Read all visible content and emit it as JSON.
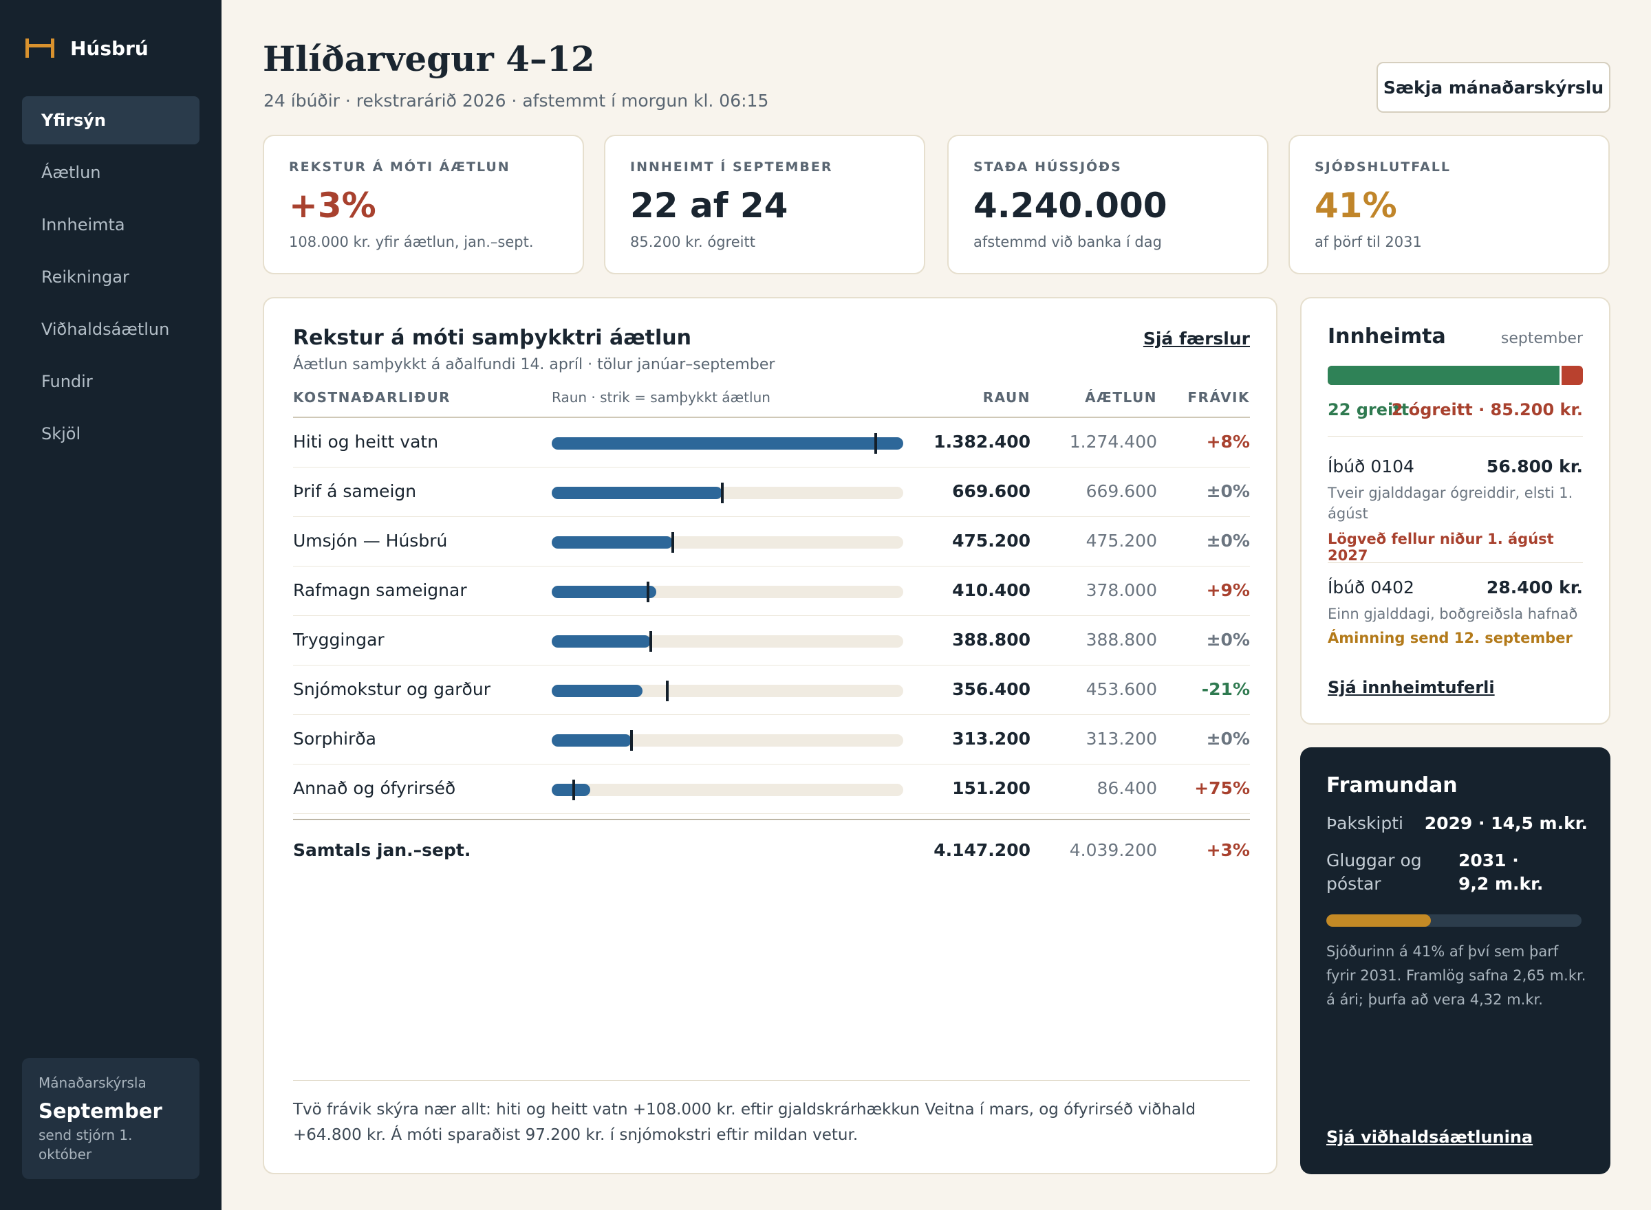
{
  "app": {
    "name": "Húsbrú",
    "logo_icon": "bridge-icon",
    "accent": "#d9922e"
  },
  "sidebar": {
    "items": [
      {
        "label": "Yfirsýn",
        "active": true
      },
      {
        "label": "Áætlun"
      },
      {
        "label": "Innheimta"
      },
      {
        "label": "Reikningar"
      },
      {
        "label": "Viðhaldsáætlun"
      },
      {
        "label": "Fundir"
      },
      {
        "label": "Skjöl"
      }
    ],
    "report": {
      "label": "Mánaðarskýrsla",
      "month": "September",
      "sub": "send stjórn 1. október"
    }
  },
  "header": {
    "title": "Hlíðarvegur 4–12",
    "subtitle": "24 íbúðir · rekstrarárið 2026 · afstemmt í morgun kl. 06:15",
    "button_label": "Sækja mánaðarskýrslu"
  },
  "kpis": [
    {
      "label": "REKSTUR Á MÓTI ÁÆTLUN",
      "value": "+3%",
      "sub": "108.000 kr. yfir áætlun, jan.–sept.",
      "color": "#a8412e"
    },
    {
      "label": "INNHEIMT Í SEPTEMBER",
      "value": "22 af 24",
      "sub": "85.200 kr. ógreitt",
      "color": "#1a2530"
    },
    {
      "label": "STAÐA HÚSSJÓÐS",
      "value": "4.240.000",
      "sub": "afstemmd við banka í dag",
      "color": "#1a2530"
    },
    {
      "label": "SJÓÐSHLUTFALL",
      "value": "41%",
      "sub": "af þörf til 2031",
      "color": "#c0852a"
    }
  ],
  "budget": {
    "title": "Rekstur á móti samþykktri áætlun",
    "subtitle": "Áætlun samþykkt á aðalfundi 14. apríl · tölur janúar–september",
    "link": "Sjá færslur",
    "headers": {
      "item": "KOSTNAÐARLIÐUR",
      "legend": "Raun · strik = samþykkt áætlun",
      "actual": "RAUN",
      "plan": "ÁÆTLUN",
      "dev": "FRÁVIK"
    },
    "rows": [
      {
        "label": "Hiti og heitt vatn",
        "actual": 1382400,
        "plan": 1274400,
        "actual_text": "1.382.400",
        "plan_text": "1.274.400",
        "dev": "+8%",
        "tone": "red"
      },
      {
        "label": "Þrif á sameign",
        "actual": 669600,
        "plan": 669600,
        "actual_text": "669.600",
        "plan_text": "669.600",
        "dev": "±0%",
        "tone": "grey"
      },
      {
        "label": "Umsjón — Húsbrú",
        "actual": 475200,
        "plan": 475200,
        "actual_text": "475.200",
        "plan_text": "475.200",
        "dev": "±0%",
        "tone": "grey"
      },
      {
        "label": "Rafmagn sameignar",
        "actual": 410400,
        "plan": 378000,
        "actual_text": "410.400",
        "plan_text": "378.000",
        "dev": "+9%",
        "tone": "red"
      },
      {
        "label": "Tryggingar",
        "actual": 388800,
        "plan": 388800,
        "actual_text": "388.800",
        "plan_text": "388.800",
        "dev": "±0%",
        "tone": "grey"
      },
      {
        "label": "Snjómokstur og garður",
        "actual": 356400,
        "plan": 453600,
        "actual_text": "356.400",
        "plan_text": "453.600",
        "dev": "-21%",
        "tone": "green"
      },
      {
        "label": "Sorphirða",
        "actual": 313200,
        "plan": 313200,
        "actual_text": "313.200",
        "plan_text": "313.200",
        "dev": "±0%",
        "tone": "grey"
      },
      {
        "label": "Annað og ófyrirséð",
        "actual": 151200,
        "plan": 86400,
        "actual_text": "151.200",
        "plan_text": "86.400",
        "dev": "+75%",
        "tone": "red"
      }
    ],
    "scale_max": 1382400,
    "total": {
      "label": "Samtals jan.–sept.",
      "actual": "4.147.200",
      "plan": "4.039.200",
      "dev": "+3%"
    },
    "note": "Tvö frávik skýra nær allt: hiti og heitt vatn +108.000 kr. eftir gjaldskrárhækkun Veitna í mars, og ófyrirséð viðhald +64.800 kr. Á móti sparaðist 97.200 kr. í snjómokstri eftir mildan vetur."
  },
  "collection": {
    "title": "Innheimta",
    "month": "september",
    "paid_count": 22,
    "total_count": 24,
    "paid_label": "22 greitt",
    "unpaid_label": "2 ógreitt · 85.200 kr.",
    "units": [
      {
        "name": "Íbúð 0104",
        "amount": "56.800 kr.",
        "desc": "Tveir gjalddagar ógreiddir, elsti 1. ágúst",
        "warn": "Lögveð fellur niður 1. ágúst 2027",
        "tone": "red"
      },
      {
        "name": "Íbúð 0402",
        "amount": "28.400 kr.",
        "desc": "Einn gjalddagi, boðgreiðsla hafnað",
        "warn": "Áminning send 12. september",
        "tone": "amber"
      }
    ],
    "link": "Sjá innheimtuferli"
  },
  "upcoming": {
    "title": "Framundan",
    "items": [
      {
        "label": "Þakskipti",
        "value": "2029 · 14,5 m.kr."
      },
      {
        "label": "Gluggar og póstar",
        "value": "2031 · 9,2 m.kr."
      }
    ],
    "fund_ratio": 0.41,
    "note": "Sjóðurinn á 41% af því sem þarf fyrir 2031. Framlög safna 2,65 m.kr. á ári; þurfa að vera 4,32 m.kr.",
    "link": "Sjá viðhaldsáætlunina"
  }
}
